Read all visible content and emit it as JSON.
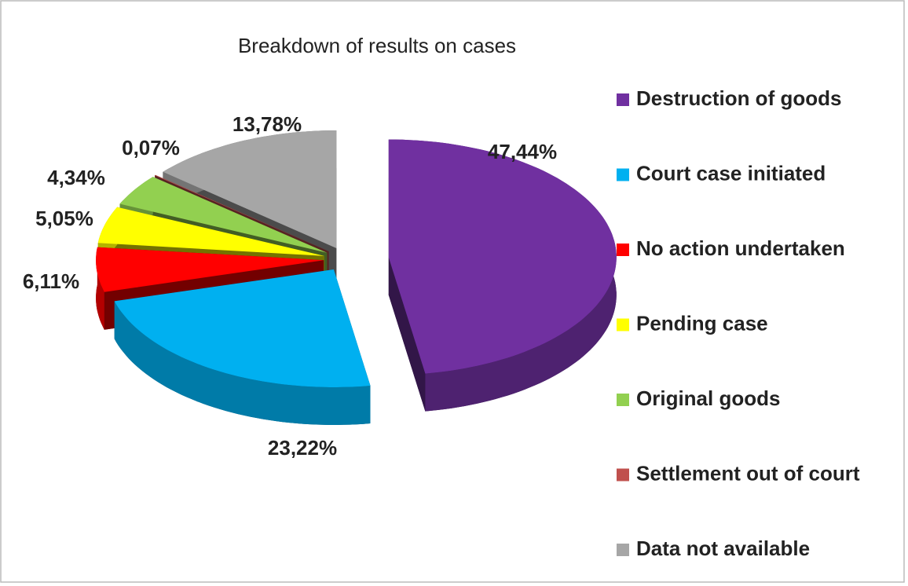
{
  "chart_data": {
    "type": "pie",
    "title": "Breakdown of results on cases",
    "categories": [
      "Destruction of goods",
      "Court case initiated",
      "No action undertaken",
      "Pending case",
      "Original goods",
      "Settlement out of court",
      "Data not available"
    ],
    "values": [
      47.44,
      23.22,
      6.11,
      5.05,
      4.34,
      0.07,
      13.78
    ],
    "value_labels": [
      "47,44%",
      "23,22%",
      "6,11%",
      "5,05%",
      "4,34%",
      "0,07%",
      "13,78%"
    ],
    "colors": [
      "#7030a0",
      "#00b0f0",
      "#ff0000",
      "#ffff00",
      "#92d050",
      "#c0504d",
      "#a6a6a6"
    ],
    "legend": "right"
  }
}
